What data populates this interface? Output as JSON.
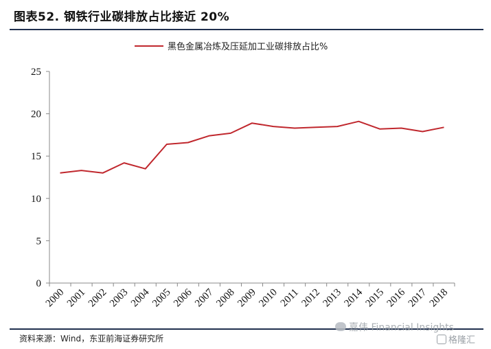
{
  "header": {
    "title": "图表52. 钢铁行业碳排放占比接近 20%"
  },
  "footer": {
    "source": "资料来源：Wind，东亚前海证券研究所",
    "watermark_primary": "嘉伟 Financial Insights",
    "watermark_secondary": "格隆汇"
  },
  "chart_data": {
    "type": "line",
    "title": "",
    "xlabel": "",
    "ylabel": "",
    "categories": [
      "2000",
      "2001",
      "2002",
      "2003",
      "2004",
      "2005",
      "2006",
      "2007",
      "2008",
      "2009",
      "2010",
      "2011",
      "2012",
      "2013",
      "2014",
      "2015",
      "2016",
      "2017",
      "2018"
    ],
    "series": [
      {
        "name": "黑色金属冶炼及压延加工业碳排放占比%",
        "color": "#c0272d",
        "values": [
          13.0,
          13.3,
          13.0,
          14.2,
          13.5,
          16.4,
          16.6,
          17.4,
          17.7,
          18.9,
          18.5,
          18.3,
          18.4,
          18.5,
          19.1,
          18.2,
          18.3,
          17.9,
          18.4
        ]
      }
    ],
    "ylim": [
      0,
      25
    ],
    "yticks": [
      0,
      5,
      10,
      15,
      20,
      25
    ],
    "grid": false,
    "legend": "top"
  }
}
